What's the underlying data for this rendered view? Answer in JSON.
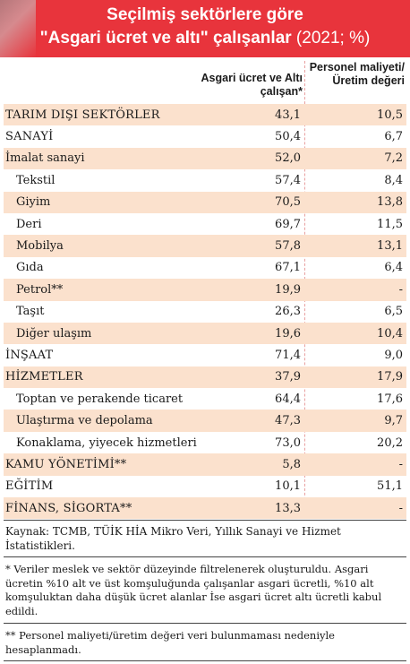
{
  "title": {
    "line1": "Seçilmiş sektörlere göre",
    "line2_main": "\"Asgari ücret ve altı\" çalışanlar",
    "line2_sub": " (2021; %)"
  },
  "columns": {
    "col1": "Asgari ücret ve Altı çalışan*",
    "col2": "Personel maliyeti/ Üretim değeri"
  },
  "rows": [
    {
      "name": "TARIM DIŞI SEKTÖRLER",
      "v1": "43,1",
      "v2": "10,5"
    },
    {
      "name": "SANAYİ",
      "v1": "50,4",
      "v2": "6,7"
    },
    {
      "name": "İmalat sanayi",
      "v1": "52,0",
      "v2": "7,2"
    },
    {
      "name": "Tekstil",
      "v1": "57,4",
      "v2": "8,4"
    },
    {
      "name": "Giyim",
      "v1": "70,5",
      "v2": "13,8"
    },
    {
      "name": "Deri",
      "v1": "69,7",
      "v2": "11,5"
    },
    {
      "name": "Mobilya",
      "v1": "57,8",
      "v2": "13,1"
    },
    {
      "name": "Gıda",
      "v1": "67,1",
      "v2": "6,4"
    },
    {
      "name": "Petrol**",
      "v1": "19,9",
      "v2": "-"
    },
    {
      "name": "Taşıt",
      "v1": "26,3",
      "v2": "6,5"
    },
    {
      "name": "Diğer ulaşım",
      "v1": "19,6",
      "v2": "10,4"
    },
    {
      "name": "İNŞAAT",
      "v1": "71,4",
      "v2": "9,0"
    },
    {
      "name": "HİZMETLER",
      "v1": "37,9",
      "v2": "17,9"
    },
    {
      "name": "Toptan ve perakende ticaret",
      "v1": "64,4",
      "v2": "17,6"
    },
    {
      "name": "Ulaştırma ve depolama",
      "v1": "47,3",
      "v2": "9,7"
    },
    {
      "name": "Konaklama, yiyecek hizmetleri",
      "v1": "73,0",
      "v2": "20,2"
    },
    {
      "name": "KAMU YÖNETİMİ**",
      "v1": "5,8",
      "v2": "-"
    },
    {
      "name": "EĞİTİM",
      "v1": "10,1",
      "v2": "51,1"
    },
    {
      "name": "FİNANS, SİGORTA**",
      "v1": "13,3",
      "v2": "-"
    }
  ],
  "source": "Kaynak: TCMB, TÜİK HİA Mikro Veri, Yıllık Sanayi ve Hizmet İstatistikleri.",
  "note1": "* Veriler meslek ve sektör düzeyinde filtrelenerek oluşturuldu. Asgari ücretin %10 alt ve üst komşuluğunda çalışanlar asgari ücretli, %10 alt komşuluktan daha düşük ücret alanlar İse asgari ücret altı ücretli kabul edildi.",
  "note2": "** Personel maliyeti/üretim değeri veri bulunmaması nedeniyle hesaplanmadı."
}
